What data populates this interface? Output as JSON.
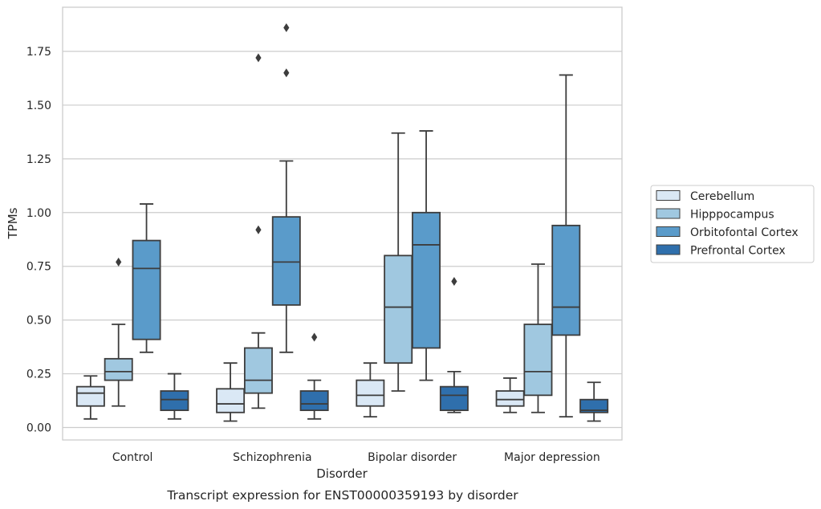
{
  "chart_data": {
    "type": "box",
    "caption": "Transcript expression for ENST00000359193 by disorder",
    "xlabel": "Disorder",
    "ylabel": "TPMs",
    "ylim": [
      -0.06,
      1.92
    ],
    "yticks": [
      0.0,
      0.25,
      0.5,
      0.75,
      1.0,
      1.25,
      1.5,
      1.75
    ],
    "ytick_labels": [
      "0.00",
      "0.25",
      "0.50",
      "0.75",
      "1.00",
      "1.25",
      "1.50",
      "1.75"
    ],
    "grid": "horizontal",
    "legend_position": "right",
    "categories": [
      "Control",
      "Schizophrenia",
      "Bipolar disorder",
      "Major depression"
    ],
    "series": [
      {
        "name": "Cerebellum",
        "color": "#dae8f5",
        "boxes": [
          {
            "min": 0.04,
            "q1": 0.1,
            "median": 0.16,
            "q3": 0.19,
            "max": 0.24,
            "outliers": []
          },
          {
            "min": 0.03,
            "q1": 0.07,
            "median": 0.11,
            "q3": 0.18,
            "max": 0.3,
            "outliers": []
          },
          {
            "min": 0.05,
            "q1": 0.1,
            "median": 0.15,
            "q3": 0.22,
            "max": 0.3,
            "outliers": []
          },
          {
            "min": 0.07,
            "q1": 0.1,
            "median": 0.13,
            "q3": 0.17,
            "max": 0.23,
            "outliers": []
          }
        ]
      },
      {
        "name": "Hipppocampus",
        "color": "#a0c8e0",
        "boxes": [
          {
            "min": 0.1,
            "q1": 0.22,
            "median": 0.26,
            "q3": 0.32,
            "max": 0.48,
            "outliers": [
              0.77
            ]
          },
          {
            "min": 0.09,
            "q1": 0.16,
            "median": 0.22,
            "q3": 0.37,
            "max": 0.44,
            "outliers": [
              0.92,
              1.72
            ]
          },
          {
            "min": 0.17,
            "q1": 0.3,
            "median": 0.56,
            "q3": 0.8,
            "max": 1.37,
            "outliers": []
          },
          {
            "min": 0.07,
            "q1": 0.15,
            "median": 0.26,
            "q3": 0.48,
            "max": 0.76,
            "outliers": []
          }
        ]
      },
      {
        "name": "Orbitofontal Cortex",
        "color": "#5a9bca",
        "boxes": [
          {
            "min": 0.35,
            "q1": 0.41,
            "median": 0.74,
            "q3": 0.87,
            "max": 1.04,
            "outliers": []
          },
          {
            "min": 0.35,
            "q1": 0.57,
            "median": 0.77,
            "q3": 0.98,
            "max": 1.24,
            "outliers": [
              1.65,
              1.86
            ]
          },
          {
            "min": 0.22,
            "q1": 0.37,
            "median": 0.85,
            "q3": 1.0,
            "max": 1.38,
            "outliers": []
          },
          {
            "min": 0.05,
            "q1": 0.43,
            "median": 0.56,
            "q3": 0.94,
            "max": 1.64,
            "outliers": []
          }
        ]
      },
      {
        "name": "Prefrontal Cortex",
        "color": "#2f6fac",
        "boxes": [
          {
            "min": 0.04,
            "q1": 0.08,
            "median": 0.13,
            "q3": 0.17,
            "max": 0.25,
            "outliers": []
          },
          {
            "min": 0.04,
            "q1": 0.08,
            "median": 0.11,
            "q3": 0.17,
            "max": 0.22,
            "outliers": [
              0.42
            ]
          },
          {
            "min": 0.07,
            "q1": 0.08,
            "median": 0.15,
            "q3": 0.19,
            "max": 0.26,
            "outliers": [
              0.68
            ]
          },
          {
            "min": 0.03,
            "q1": 0.07,
            "median": 0.08,
            "q3": 0.13,
            "max": 0.21,
            "outliers": []
          }
        ]
      }
    ]
  }
}
